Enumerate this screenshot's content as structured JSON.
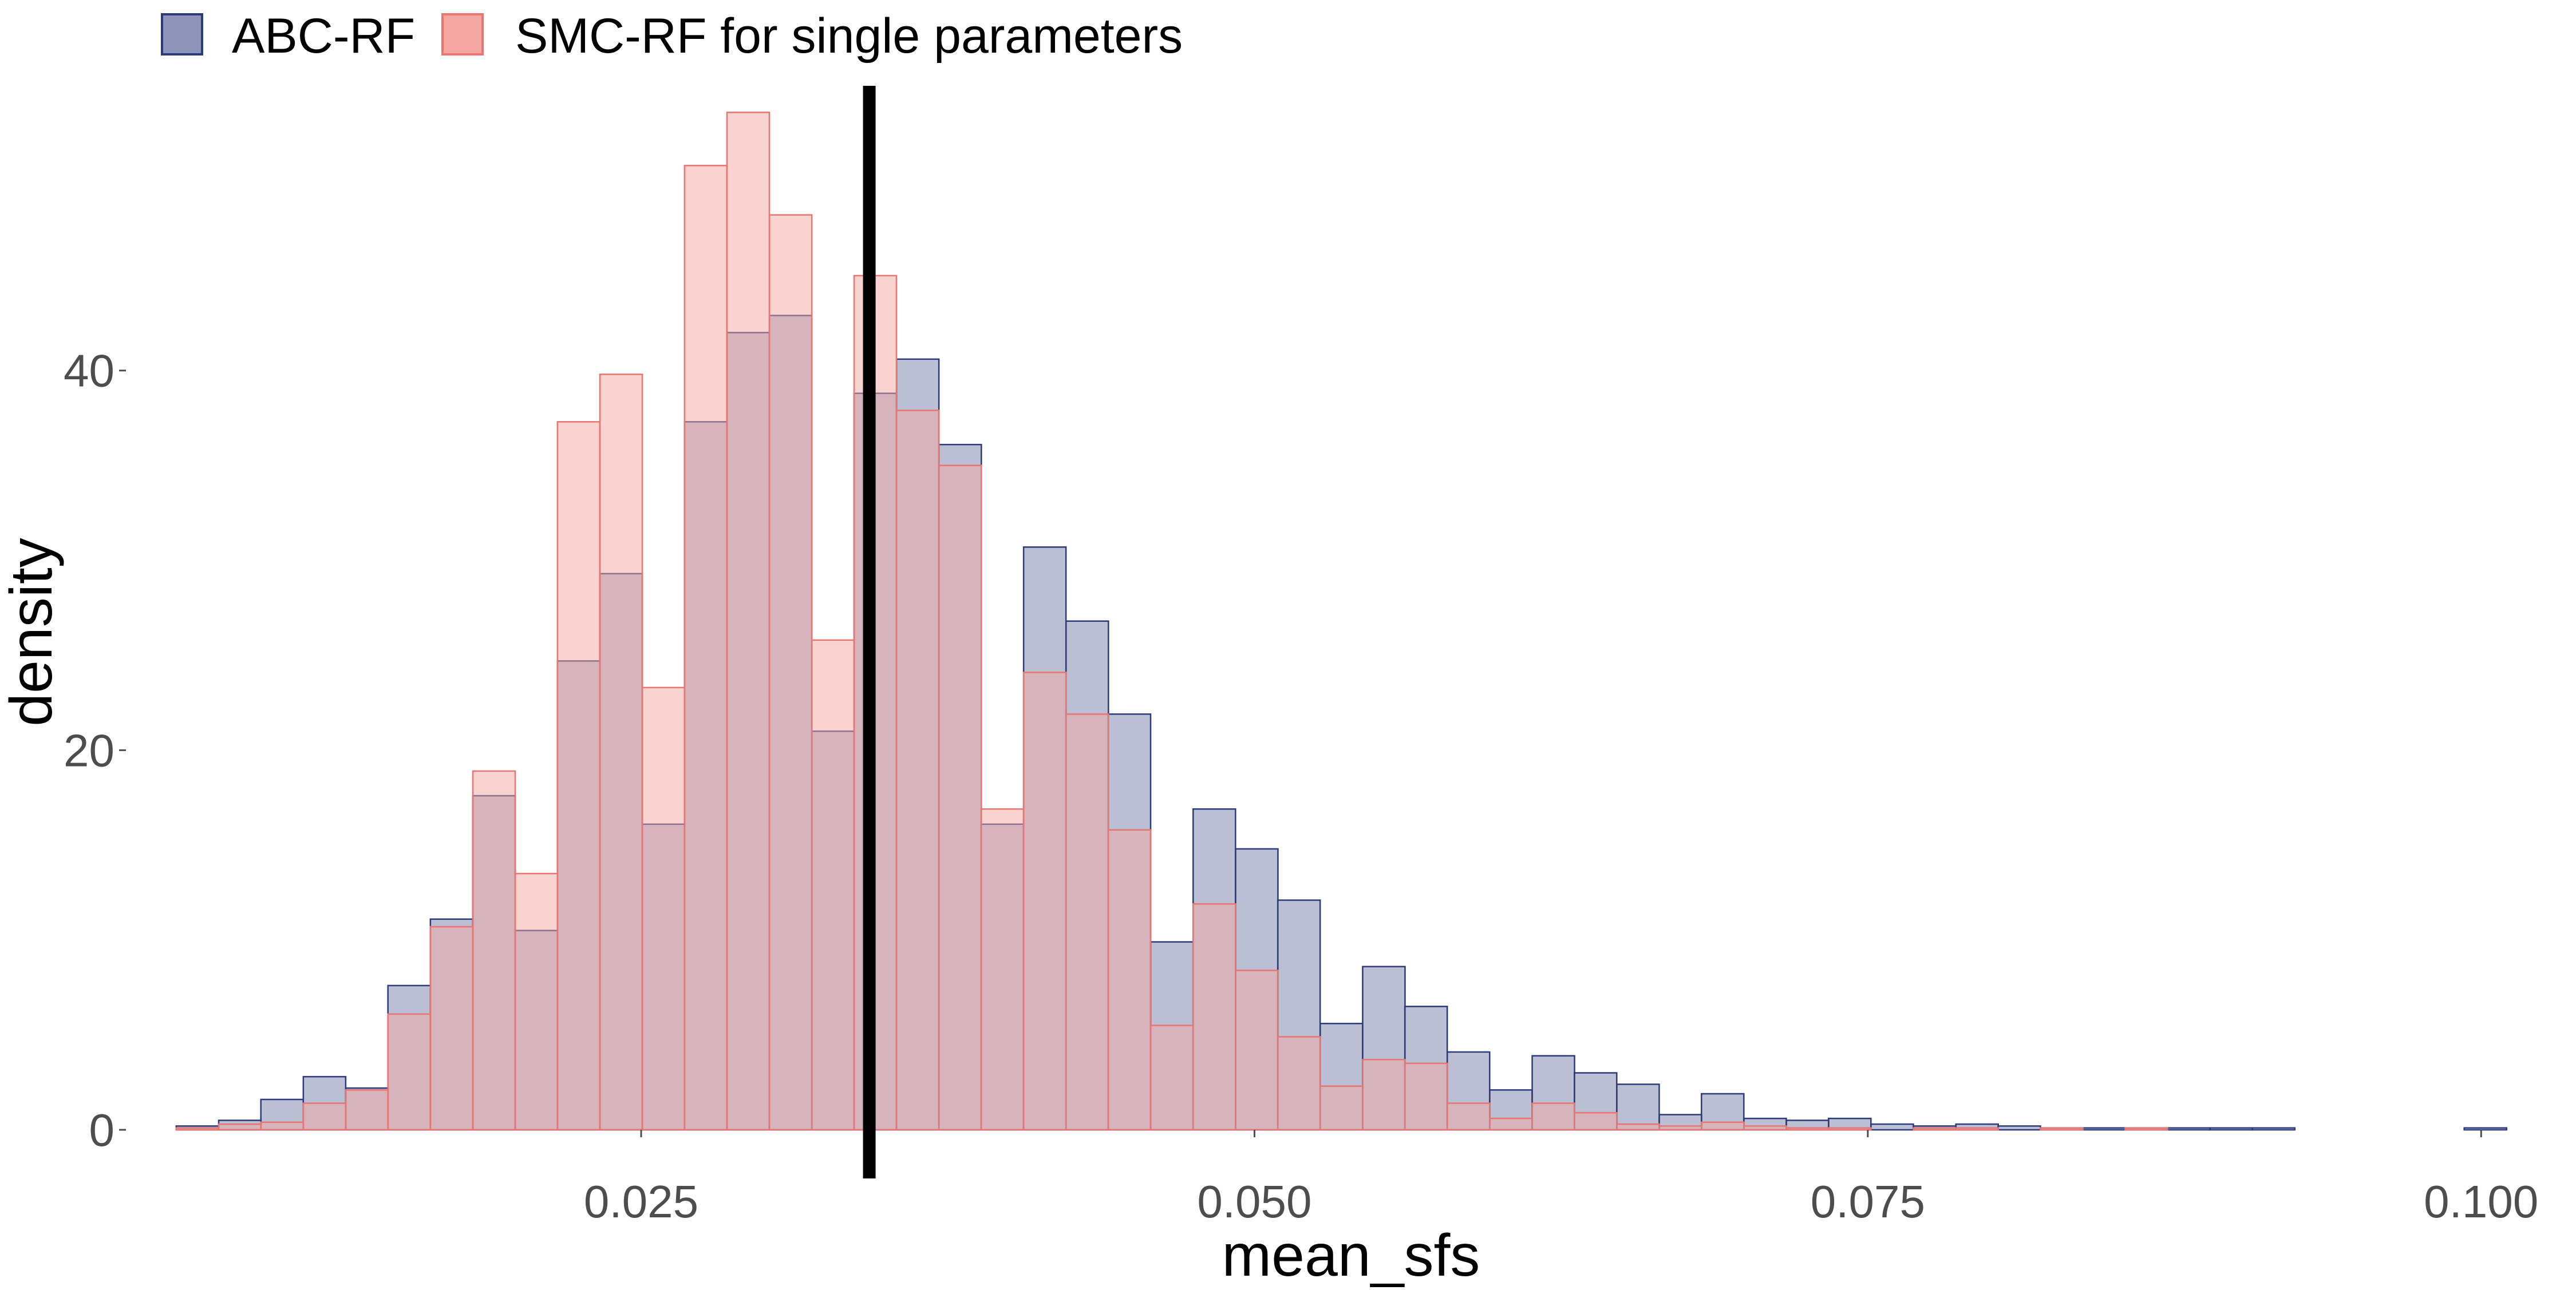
{
  "chart_data": {
    "type": "histogram",
    "title": "",
    "xlabel": "mean_sfs",
    "ylabel": "density",
    "xlim": [
      0.004,
      0.102
    ],
    "ylim": [
      0,
      55
    ],
    "x_ticks": [
      0.025,
      0.05,
      0.075,
      0.1
    ],
    "x_tick_labels": [
      "0.025",
      "0.050",
      "0.075",
      "0.100"
    ],
    "y_ticks": [
      0,
      20,
      40
    ],
    "y_tick_labels": [
      "0",
      "20",
      "40"
    ],
    "grid": false,
    "legend_position": "top-left",
    "bin_width": 0.001727,
    "bin_starts": [
      0.00605,
      0.00778,
      0.0095,
      0.01123,
      0.01296,
      0.01468,
      0.01641,
      0.01814,
      0.01987,
      0.02159,
      0.02332,
      0.02505,
      0.02677,
      0.0285,
      0.03023,
      0.03196,
      0.03368,
      0.03541,
      0.03714,
      0.03886,
      0.04059,
      0.04232,
      0.04404,
      0.04577,
      0.0475,
      0.04923,
      0.05095,
      0.05268,
      0.05441,
      0.05613,
      0.05786,
      0.05959,
      0.06132,
      0.06304,
      0.06477,
      0.0665,
      0.06822,
      0.06995,
      0.07168,
      0.0734,
      0.07513,
      0.07686,
      0.07859,
      0.08031,
      0.08204,
      0.08377,
      0.08549,
      0.08722,
      0.08895,
      0.09068,
      0.0924,
      0.09413,
      0.09586,
      0.09758,
      0.09931
    ],
    "series": [
      {
        "name": "ABC-RF",
        "fill": "#8e94b8",
        "stroke": "#2b3a7a",
        "opacity": 0.6,
        "values": [
          0.2,
          0.5,
          1.6,
          2.8,
          2.2,
          7.6,
          11.1,
          17.6,
          10.5,
          24.7,
          29.3,
          16.1,
          37.3,
          42.0,
          42.9,
          21.0,
          38.8,
          40.6,
          36.1,
          16.1,
          30.7,
          26.8,
          21.9,
          9.9,
          16.9,
          14.8,
          12.1,
          5.6,
          8.6,
          6.5,
          4.1,
          2.1,
          3.9,
          3.0,
          2.4,
          0.8,
          1.9,
          0.6,
          0.5,
          0.6,
          0.3,
          0.2,
          0.3,
          0.2,
          0.1,
          0.1,
          0.1,
          0.1,
          0.1,
          0.1,
          0.0,
          0.0,
          0.0,
          0.0,
          0.1
        ]
      },
      {
        "name": "SMC-RF for single parameters",
        "fill": "#f4a7a1",
        "stroke": "#e8756f",
        "opacity": 0.5,
        "values": [
          0.1,
          0.3,
          0.4,
          1.4,
          2.1,
          6.1,
          10.7,
          18.9,
          13.5,
          37.3,
          39.8,
          23.3,
          50.8,
          53.6,
          48.2,
          25.8,
          45.0,
          37.9,
          35.0,
          16.9,
          24.1,
          21.9,
          15.8,
          5.5,
          11.9,
          8.4,
          4.9,
          2.3,
          3.7,
          3.5,
          1.4,
          0.6,
          1.4,
          0.9,
          0.3,
          0.2,
          0.4,
          0.2,
          0.1,
          0.1,
          0.0,
          0.1,
          0.1,
          0.0,
          0.1,
          0.0,
          0.1,
          0.0,
          0.0,
          0.0,
          0.0,
          0.0,
          0.0,
          0.0,
          0.0
        ]
      }
    ],
    "reference_line": {
      "x": 0.0343,
      "color": "#000000"
    }
  }
}
